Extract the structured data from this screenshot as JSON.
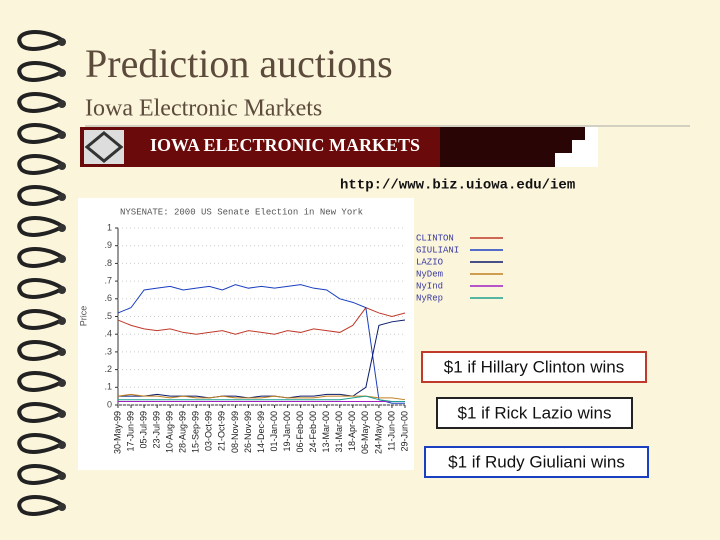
{
  "header": {
    "title": "Prediction auctions",
    "subtitle": "Iowa Electronic Markets"
  },
  "banner": {
    "text": "IOWA ELECTRONIC MARKETS"
  },
  "url": "http://www.biz.uiowa.edu/iem",
  "chart_data": {
    "type": "line",
    "title": "NYSENATE: 2000 US Senate Election in New York",
    "y_label": "Price",
    "categories": [
      "30-May-99",
      "17-Jun-99",
      "05-Jul-99",
      "23-Jul-99",
      "10-Aug-99",
      "28-Aug-99",
      "15-Sep-99",
      "03-Oct-99",
      "21-Oct-99",
      "08-Nov-99",
      "26-Nov-99",
      "14-Dec-99",
      "01-Jan-00",
      "19-Jan-00",
      "06-Feb-00",
      "24-Feb-00",
      "13-Mar-00",
      "31-Mar-00",
      "18-Apr-00",
      "06-May-00",
      "24-May-00",
      "11-Jun-00",
      "29-Jun-00"
    ],
    "series": [
      {
        "name": "CLINTON",
        "color": "#c0392b",
        "values": [
          0.48,
          0.45,
          0.43,
          0.42,
          0.43,
          0.41,
          0.4,
          0.41,
          0.42,
          0.4,
          0.42,
          0.41,
          0.4,
          0.42,
          0.41,
          0.43,
          0.42,
          0.41,
          0.45,
          0.55,
          0.52,
          0.5,
          0.52
        ]
      },
      {
        "name": "GIULIANI",
        "color": "#1a3fc0",
        "values": [
          0.52,
          0.55,
          0.65,
          0.66,
          0.67,
          0.65,
          0.66,
          0.67,
          0.65,
          0.68,
          0.66,
          0.67,
          0.66,
          0.67,
          0.68,
          0.66,
          0.65,
          0.6,
          0.58,
          0.55,
          0.03,
          0.01,
          0.01
        ]
      },
      {
        "name": "LAZIO",
        "color": "#0a1a6a",
        "values": [
          0.05,
          0.05,
          0.05,
          0.06,
          0.05,
          0.05,
          0.05,
          0.04,
          0.05,
          0.05,
          0.04,
          0.05,
          0.05,
          0.04,
          0.05,
          0.05,
          0.06,
          0.06,
          0.05,
          0.1,
          0.45,
          0.47,
          0.48
        ]
      },
      {
        "name": "NyDem",
        "color": "#c08020",
        "values": [
          0.05,
          0.06,
          0.05,
          0.05,
          0.04,
          0.05,
          0.04,
          0.04,
          0.05,
          0.04,
          0.04,
          0.04,
          0.05,
          0.04,
          0.04,
          0.04,
          0.05,
          0.05,
          0.05,
          0.05,
          0.04,
          0.04,
          0.03
        ]
      },
      {
        "name": "NyInd",
        "color": "#a020c0",
        "values": [
          0.02,
          0.02,
          0.02,
          0.02,
          0.02,
          0.02,
          0.02,
          0.02,
          0.02,
          0.02,
          0.02,
          0.02,
          0.02,
          0.02,
          0.02,
          0.02,
          0.02,
          0.02,
          0.02,
          0.02,
          0.02,
          0.02,
          0.02
        ]
      },
      {
        "name": "NyRep",
        "color": "#20a090",
        "values": [
          0.03,
          0.03,
          0.03,
          0.03,
          0.03,
          0.03,
          0.03,
          0.03,
          0.03,
          0.03,
          0.03,
          0.03,
          0.03,
          0.03,
          0.03,
          0.03,
          0.03,
          0.03,
          0.04,
          0.05,
          0.03,
          0.02,
          0.02
        ]
      }
    ],
    "ylim": [
      0,
      1
    ],
    "yticks": [
      0,
      {
        "value": 0.1,
        "label": ".1"
      },
      {
        "value": 0.2,
        "label": ".2"
      },
      {
        "value": 0.3,
        "label": ".3"
      },
      {
        "value": 0.4,
        "label": ".4"
      },
      {
        "value": 0.5,
        "label": ".5"
      },
      {
        "value": 0.6,
        "label": ".6"
      },
      {
        "value": 0.7,
        "label": ".7"
      },
      {
        "value": 0.8,
        "label": ".8"
      },
      {
        "value": 0.9,
        "label": ".9"
      },
      1
    ]
  },
  "callouts": [
    {
      "text": "$1 if Hillary Clinton wins",
      "color": "#c0392b"
    },
    {
      "text": "$1 if Rick Lazio wins",
      "color": "#222222"
    },
    {
      "text": "$1 if Rudy Giuliani wins",
      "color": "#1a3fc0"
    }
  ]
}
